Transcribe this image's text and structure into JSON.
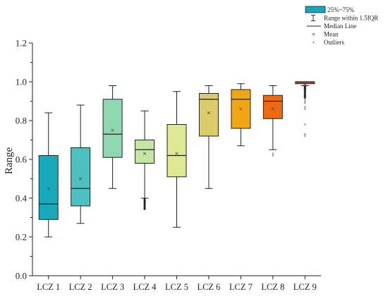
{
  "chart_data": {
    "type": "box",
    "ylabel": "Range",
    "ylim": [
      0.0,
      1.2
    ],
    "yticks": [
      0.0,
      0.2,
      0.4,
      0.6,
      0.8,
      1.0,
      1.2
    ],
    "ytick_labels": [
      "0.0",
      "0.2",
      "0.4",
      "0.6",
      "0.8",
      "1.0",
      "1.2"
    ],
    "grid": false,
    "legend_position": "top-right",
    "legend": [
      {
        "label": "25%~75%",
        "kind": "box",
        "color": "#14a6bd"
      },
      {
        "label": "Range within 1.5IQR",
        "kind": "whisker"
      },
      {
        "label": "Median Line",
        "kind": "line"
      },
      {
        "label": "Mean",
        "kind": "mean"
      },
      {
        "label": "Outliers",
        "kind": "outlier"
      }
    ],
    "categories": [
      "LCZ 1",
      "LCZ 2",
      "LCZ 3",
      "LCZ 4",
      "LCZ 5",
      "LCZ 6",
      "LCZ 7",
      "LCZ 8",
      "LCZ 9"
    ],
    "boxes": [
      {
        "category": "LCZ 1",
        "whisker_low": 0.2,
        "q1": 0.29,
        "median": 0.37,
        "q3": 0.62,
        "whisker_high": 0.84,
        "mean": 0.45,
        "outliers": [],
        "color": "#19a9bd"
      },
      {
        "category": "LCZ 2",
        "whisker_low": 0.27,
        "q1": 0.36,
        "median": 0.45,
        "q3": 0.66,
        "whisker_high": 0.88,
        "mean": 0.5,
        "outliers": [],
        "color": "#4dc0bf"
      },
      {
        "category": "LCZ 3",
        "whisker_low": 0.45,
        "q1": 0.61,
        "median": 0.73,
        "q3": 0.91,
        "whisker_high": 0.98,
        "mean": 0.75,
        "outliers": [],
        "color": "#8fd7b0"
      },
      {
        "category": "LCZ 4",
        "whisker_low": 0.4,
        "q1": 0.58,
        "median": 0.65,
        "q3": 0.7,
        "whisker_high": 0.85,
        "mean": 0.63,
        "outliers": [
          0.345,
          0.355,
          0.365,
          0.375,
          0.385,
          0.395
        ],
        "color": "#c4e8a4"
      },
      {
        "category": "LCZ 5",
        "whisker_low": 0.25,
        "q1": 0.51,
        "median": 0.62,
        "q3": 0.78,
        "whisker_high": 0.95,
        "mean": 0.63,
        "outliers": [],
        "color": "#dfe893"
      },
      {
        "category": "LCZ 6",
        "whisker_low": 0.45,
        "q1": 0.72,
        "median": 0.91,
        "q3": 0.94,
        "whisker_high": 0.98,
        "mean": 0.84,
        "outliers": [],
        "color": "#dccb6b"
      },
      {
        "category": "LCZ 7",
        "whisker_low": 0.67,
        "q1": 0.76,
        "median": 0.91,
        "q3": 0.96,
        "whisker_high": 0.99,
        "mean": 0.86,
        "outliers": [],
        "color": "#f2a614"
      },
      {
        "category": "LCZ 8",
        "whisker_low": 0.65,
        "q1": 0.81,
        "median": 0.9,
        "q3": 0.93,
        "whisker_high": 0.98,
        "mean": 0.86,
        "outliers": [
          0.62,
          0.63
        ],
        "color": "#ef6a0e"
      },
      {
        "category": "LCZ 9",
        "whisker_low": 0.98,
        "q1": 0.99,
        "median": 1.0,
        "q3": 1.0,
        "whisker_high": 1.0,
        "mean": 0.99,
        "outliers": [
          0.72,
          0.73,
          0.78,
          0.86,
          0.87,
          0.89,
          0.9,
          0.91,
          0.92,
          0.93,
          0.94,
          0.95,
          0.96,
          0.965,
          0.97,
          0.975
        ],
        "color": "#e03a1a"
      }
    ]
  }
}
